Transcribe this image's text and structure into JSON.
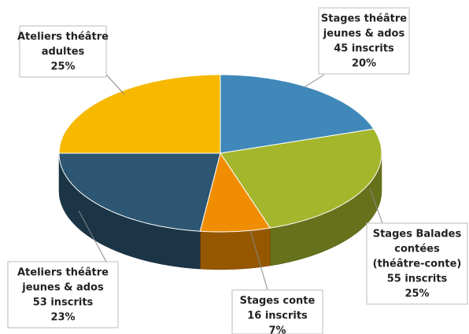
{
  "chart_data": {
    "type": "pie3d",
    "labels": [
      [
        "Stages théâtre",
        "jeunes & ados",
        "45 inscrits"
      ],
      [
        "Stages Balades",
        "contées",
        "(théâtre-conte)",
        "55 inscrits"
      ],
      [
        "Stages conte",
        "16 inscrits"
      ],
      [
        "Ateliers théâtre",
        "jeunes & ados",
        "53 inscrits"
      ],
      [
        "Ateliers théâtre",
        "adultes"
      ]
    ],
    "values": [
      20,
      25,
      7,
      23,
      25
    ],
    "value_labels": [
      "20%",
      "25%",
      "7%",
      "23%",
      "25%"
    ],
    "colors": [
      "#3f88b9",
      "#a4b62c",
      "#f08d00",
      "#2c5671",
      "#f6b900"
    ]
  }
}
